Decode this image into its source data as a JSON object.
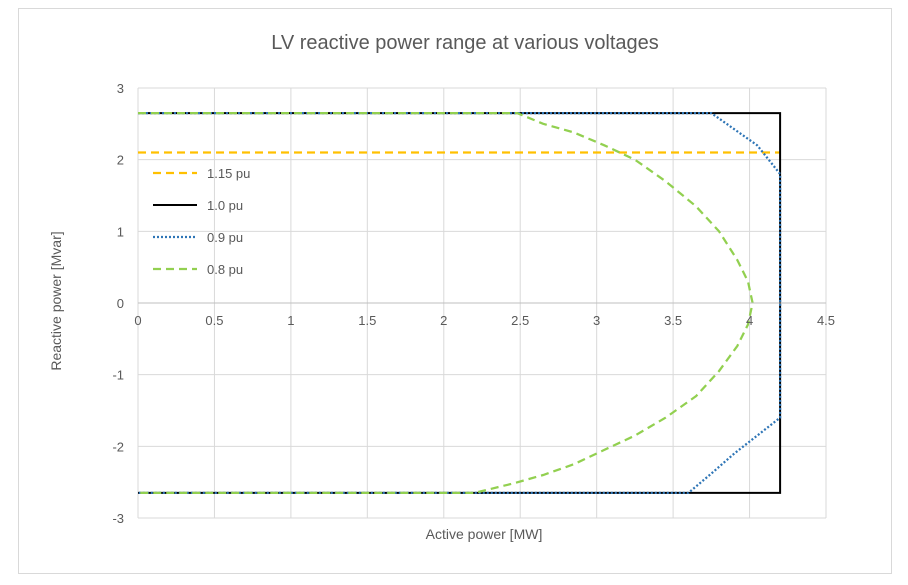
{
  "chart_data": {
    "type": "line",
    "title": "LV reactive power range at various voltages",
    "xlabel": "Active power [MW]",
    "ylabel": "Reactive power [Mvar]",
    "xlim": [
      0,
      4.5
    ],
    "ylim": [
      -3,
      3
    ],
    "x_ticks": [
      0,
      0.5,
      1,
      1.5,
      2,
      2.5,
      3,
      3.5,
      4,
      4.5
    ],
    "y_ticks": [
      -3,
      -2,
      -1,
      0,
      1,
      2,
      3
    ],
    "x_tick_labels": [
      "0",
      "0.5",
      "1",
      "1.5",
      "2",
      "2.5",
      "3",
      "3.5",
      "4",
      "4.5"
    ],
    "y_tick_labels": [
      "-3",
      "-2",
      "-1",
      "0",
      "1",
      "2",
      "3"
    ],
    "grid": true,
    "legend_position": "left",
    "series": [
      {
        "name": "1.15 pu",
        "color": "#ffc000",
        "style": "dashed",
        "x": [
          0,
          4.2
        ],
        "y": [
          2.1,
          2.1
        ]
      },
      {
        "name": "1.0 pu",
        "color": "#000000",
        "style": "solid",
        "x": [
          0,
          4.2,
          4.2,
          0
        ],
        "y": [
          2.65,
          2.65,
          -2.65,
          -2.65
        ]
      },
      {
        "name": "0.9 pu",
        "color": "#2e75b6",
        "style": "dotted",
        "x": [
          0,
          3.75,
          3.85,
          3.95,
          4.05,
          4.2,
          4.2,
          4.05,
          3.9,
          3.75,
          3.6,
          0
        ],
        "y": [
          2.65,
          2.65,
          2.5,
          2.35,
          2.2,
          1.8,
          -1.6,
          -1.85,
          -2.1,
          -2.38,
          -2.65,
          -2.65
        ]
      },
      {
        "name": "0.8 pu",
        "color": "#92d050",
        "style": "dashed",
        "x": [
          0,
          2.48,
          2.65,
          2.85,
          3.05,
          3.25,
          3.45,
          3.65,
          3.8,
          3.92,
          3.99,
          4.02,
          3.99,
          3.92,
          3.8,
          3.65,
          3.45,
          3.25,
          3.05,
          2.85,
          2.65,
          2.45,
          2.2,
          0
        ],
        "y": [
          2.65,
          2.65,
          2.5,
          2.38,
          2.2,
          2.0,
          1.7,
          1.35,
          1.0,
          0.6,
          0.3,
          0.0,
          -0.3,
          -0.6,
          -0.95,
          -1.3,
          -1.6,
          -1.85,
          -2.05,
          -2.25,
          -2.4,
          -2.52,
          -2.65,
          -2.65
        ]
      }
    ]
  }
}
